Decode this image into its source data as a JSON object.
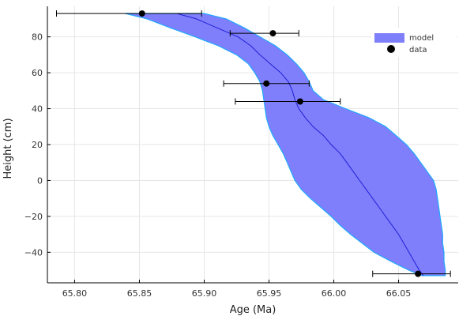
{
  "chart_data": {
    "type": "scatter",
    "xlabel": "Age (Ma)",
    "ylabel": "Height (cm)",
    "xlim": [
      65.779,
      66.096
    ],
    "ylim": [
      -57,
      97
    ],
    "xticks": [
      65.8,
      65.85,
      65.9,
      65.95,
      66.0,
      66.05
    ],
    "xtick_labels": [
      "65.80",
      "65.85",
      "65.90",
      "65.95",
      "66.00",
      "66.05"
    ],
    "yticks": [
      80,
      60,
      40,
      20,
      0,
      -20,
      -40
    ],
    "ytick_labels": [
      "80",
      "60",
      "40",
      "20",
      "0",
      "−20",
      "−40"
    ],
    "grid": true,
    "legend": {
      "placement": "top-right"
    },
    "colors": {
      "band_fill": "#7f7ffb",
      "band_edge": "#1fa8ff",
      "median_line": "#2020d8",
      "point": "#000000"
    },
    "series": [
      {
        "name": "model",
        "kind": "band",
        "height": [
          93,
          90,
          85,
          80,
          75,
          70,
          65,
          60,
          55,
          50,
          45,
          40,
          35,
          30,
          25,
          20,
          15,
          10,
          5,
          0,
          -5,
          -10,
          -15,
          -20,
          -25,
          -30,
          -35,
          -40,
          -45,
          -50,
          -53
        ],
        "lower": [
          65.839,
          65.856,
          65.874,
          65.893,
          65.911,
          65.925,
          65.934,
          65.939,
          65.943,
          65.945,
          65.946,
          65.947,
          65.948,
          65.95,
          65.953,
          65.957,
          65.961,
          65.964,
          65.967,
          65.97,
          65.975,
          65.982,
          65.99,
          65.998,
          66.005,
          66.013,
          66.022,
          66.031,
          66.044,
          66.058,
          66.068
        ],
        "upper": [
          65.9,
          65.917,
          65.931,
          65.943,
          65.955,
          65.964,
          65.971,
          65.977,
          65.981,
          65.984,
          65.992,
          66.009,
          66.027,
          66.04,
          66.048,
          66.056,
          66.062,
          66.067,
          66.072,
          66.077,
          66.079,
          66.08,
          66.081,
          66.082,
          66.083,
          66.084,
          66.084,
          66.085,
          66.085,
          66.086,
          66.086
        ],
        "median": [
          65.879,
          65.894,
          65.91,
          65.926,
          65.936,
          65.943,
          65.951,
          65.959,
          65.965,
          65.968,
          65.97,
          65.973,
          65.978,
          65.984,
          65.992,
          65.998,
          66.005,
          66.01,
          66.015,
          66.02,
          66.025,
          66.03,
          66.035,
          66.04,
          66.045,
          66.05,
          66.054,
          66.058,
          66.062,
          66.066,
          66.069
        ]
      },
      {
        "name": "data",
        "kind": "points",
        "points": [
          {
            "x": 65.852,
            "y": 93,
            "xerr_low": 65.786,
            "xerr_high": 65.898
          },
          {
            "x": 65.953,
            "y": 82,
            "xerr_low": 65.92,
            "xerr_high": 65.973
          },
          {
            "x": 65.948,
            "y": 54,
            "xerr_low": 65.915,
            "xerr_high": 65.981
          },
          {
            "x": 65.974,
            "y": 44,
            "xerr_low": 65.924,
            "xerr_high": 66.005
          },
          {
            "x": 66.065,
            "y": -52,
            "xerr_low": 66.03,
            "xerr_high": 66.09
          }
        ]
      }
    ]
  }
}
